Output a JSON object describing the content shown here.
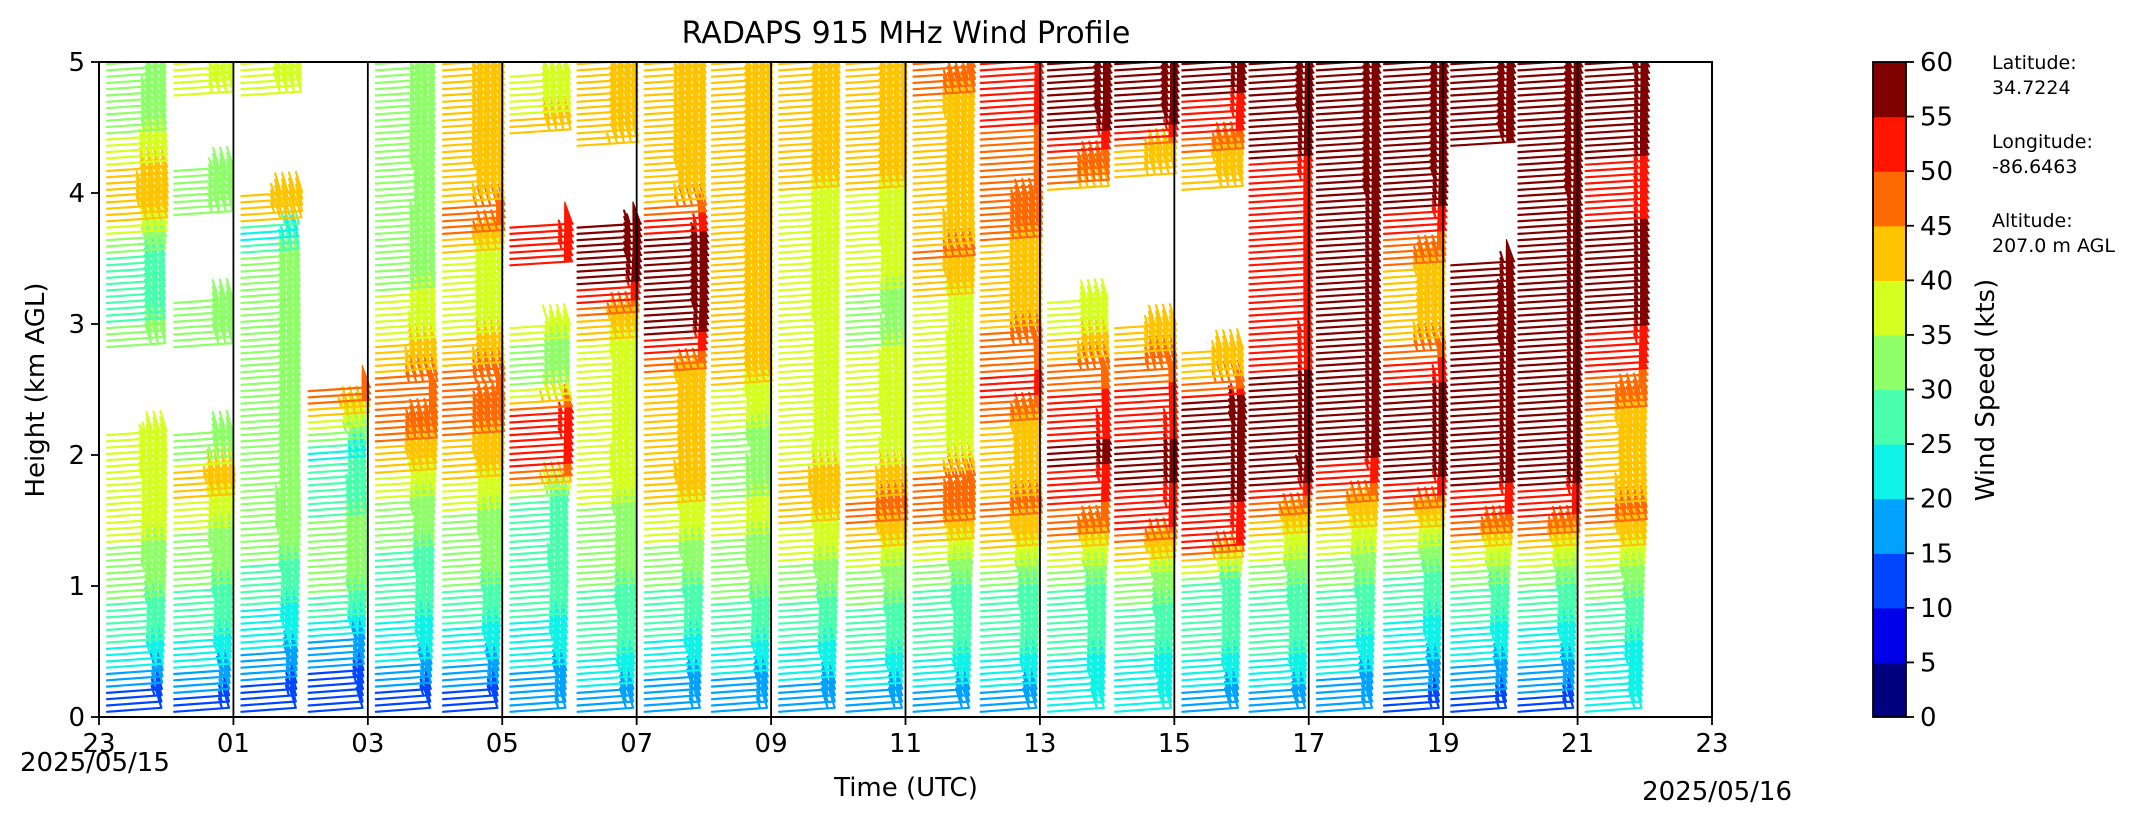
{
  "chart_data": {
    "type": "wind-barb-profile",
    "title": "RADAPS 915 MHz Wind Profile",
    "xlabel": "Time (UTC)",
    "ylabel": "Height (km AGL)",
    "x_tick_labels": [
      "23",
      "01",
      "03",
      "05",
      "07",
      "09",
      "11",
      "13",
      "15",
      "17",
      "19",
      "21",
      "23"
    ],
    "x_start_date": "2025/05/15",
    "x_end_date": "2025/05/16",
    "xlim_hours_utc": [
      23,
      47
    ],
    "ylim_km": [
      0,
      5
    ],
    "y_ticks": [
      "0",
      "1",
      "2",
      "3",
      "4",
      "5"
    ],
    "vertical_gridline_hours_utc": [
      25,
      27,
      29,
      31,
      33,
      35,
      37,
      39,
      41,
      43,
      45
    ],
    "colorbar": {
      "label": "Wind Speed (kts)",
      "colormap": "jet",
      "ticks": [
        "0",
        "5",
        "10",
        "15",
        "20",
        "25",
        "30",
        "35",
        "40",
        "45",
        "50",
        "55",
        "60"
      ],
      "bin_colors": [
        "#00007f",
        "#0000e9",
        "#0046ff",
        "#00a2ff",
        "#0ff2e7",
        "#49ffad",
        "#8eff69",
        "#d5ff21",
        "#ffc400",
        "#ff6a00",
        "#ff1500",
        "#800000"
      ]
    },
    "site_info": {
      "latitude_label": "Latitude:",
      "latitude_value": "34.7224",
      "longitude_label": "Longitude:",
      "longitude_value": "-86.6463",
      "altitude_label": "Altitude:",
      "altitude_value": "207.0 m AGL"
    },
    "profiles": [
      {
        "time_utc": 23.0,
        "levels": [
          [
            0.1,
            12
          ],
          [
            0.5,
            24
          ],
          [
            1.0,
            32
          ],
          [
            1.5,
            37
          ],
          [
            1.9,
            38
          ],
          [
            2.0,
            38
          ],
          [
            3.0,
            30
          ],
          [
            3.5,
            28
          ],
          [
            3.8,
            42
          ],
          [
            4.0,
            44
          ],
          [
            4.5,
            34
          ],
          [
            4.9,
            32
          ]
        ]
      },
      {
        "time_utc": 24.0,
        "levels": [
          [
            0.1,
            14
          ],
          [
            0.5,
            24
          ],
          [
            1.0,
            30
          ],
          [
            1.5,
            36
          ],
          [
            1.8,
            44
          ],
          [
            2.0,
            32
          ],
          [
            3.0,
            32
          ],
          [
            4.0,
            34
          ],
          [
            4.9,
            36
          ]
        ]
      },
      {
        "time_utc": 25.0,
        "levels": [
          [
            0.1,
            12
          ],
          [
            0.5,
            20
          ],
          [
            1.0,
            28
          ],
          [
            1.5,
            34
          ],
          [
            2.0,
            30
          ],
          [
            2.3,
            32
          ],
          [
            3.0,
            32
          ],
          [
            3.5,
            30
          ],
          [
            3.7,
            20
          ],
          [
            3.8,
            44
          ],
          [
            4.9,
            38
          ]
        ]
      },
      {
        "time_utc": 26.0,
        "levels": [
          [
            0.1,
            10
          ],
          [
            0.5,
            18
          ],
          [
            1.0,
            32
          ],
          [
            1.5,
            30
          ],
          [
            2.0,
            24
          ],
          [
            2.4,
            48
          ]
        ]
      },
      {
        "time_utc": 27.0,
        "levels": [
          [
            0.1,
            12
          ],
          [
            0.5,
            22
          ],
          [
            1.0,
            28
          ],
          [
            1.5,
            32
          ],
          [
            2.0,
            44
          ],
          [
            2.3,
            48
          ],
          [
            2.5,
            48
          ],
          [
            3.0,
            36
          ],
          [
            3.5,
            34
          ],
          [
            4.0,
            32
          ],
          [
            4.5,
            34
          ],
          [
            4.9,
            34
          ]
        ]
      },
      {
        "time_utc": 28.0,
        "levels": [
          [
            0.1,
            12
          ],
          [
            0.5,
            22
          ],
          [
            1.0,
            30
          ],
          [
            1.5,
            34
          ],
          [
            2.0,
            44
          ],
          [
            2.5,
            48
          ],
          [
            3.0,
            38
          ],
          [
            3.5,
            40
          ],
          [
            3.8,
            50
          ],
          [
            4.0,
            42
          ],
          [
            4.5,
            44
          ],
          [
            4.9,
            44
          ]
        ]
      },
      {
        "time_utc": 29.0,
        "levels": [
          [
            0.1,
            16
          ],
          [
            0.5,
            22
          ],
          [
            1.0,
            28
          ],
          [
            1.6,
            26
          ],
          [
            1.8,
            48
          ],
          [
            2.0,
            52
          ],
          [
            2.3,
            54
          ],
          [
            2.5,
            34
          ],
          [
            2.8,
            34
          ],
          [
            3.6,
            54
          ],
          [
            4.6,
            40
          ],
          [
            4.8,
            38
          ]
        ]
      },
      {
        "time_utc": 30.0,
        "levels": [
          [
            0.1,
            18
          ],
          [
            0.5,
            26
          ],
          [
            1.0,
            30
          ],
          [
            1.5,
            32
          ],
          [
            1.8,
            40
          ],
          [
            2.0,
            36
          ],
          [
            2.5,
            36
          ],
          [
            3.0,
            42
          ],
          [
            3.2,
            52
          ],
          [
            3.4,
            58
          ],
          [
            3.6,
            60
          ],
          [
            4.5,
            40
          ],
          [
            4.9,
            40
          ]
        ]
      },
      {
        "time_utc": 31.0,
        "levels": [
          [
            0.1,
            16
          ],
          [
            0.5,
            24
          ],
          [
            1.0,
            30
          ],
          [
            1.5,
            38
          ],
          [
            1.8,
            44
          ],
          [
            2.0,
            40
          ],
          [
            2.5,
            42
          ],
          [
            3.0,
            58
          ],
          [
            3.3,
            58
          ],
          [
            3.6,
            58
          ],
          [
            4.0,
            42
          ],
          [
            4.5,
            44
          ],
          [
            4.9,
            44
          ]
        ]
      },
      {
        "time_utc": 32.0,
        "levels": [
          [
            0.1,
            16
          ],
          [
            0.5,
            24
          ],
          [
            1.0,
            32
          ],
          [
            1.5,
            36
          ],
          [
            2.0,
            32
          ],
          [
            2.5,
            40
          ],
          [
            3.0,
            40
          ],
          [
            3.5,
            40
          ],
          [
            4.0,
            42
          ],
          [
            4.5,
            42
          ],
          [
            4.9,
            42
          ]
        ]
      },
      {
        "time_utc": 33.0,
        "levels": [
          [
            0.1,
            18
          ],
          [
            0.5,
            24
          ],
          [
            1.0,
            32
          ],
          [
            1.6,
            42
          ],
          [
            1.8,
            44
          ],
          [
            2.0,
            36
          ],
          [
            2.5,
            36
          ],
          [
            3.0,
            38
          ],
          [
            3.5,
            38
          ],
          [
            4.0,
            40
          ],
          [
            4.5,
            42
          ],
          [
            4.9,
            42
          ]
        ]
      },
      {
        "time_utc": 34.0,
        "levels": [
          [
            0.1,
            18
          ],
          [
            0.5,
            26
          ],
          [
            1.0,
            32
          ],
          [
            1.5,
            46
          ],
          [
            1.8,
            44
          ],
          [
            2.0,
            36
          ],
          [
            2.5,
            40
          ],
          [
            3.0,
            32
          ],
          [
            3.5,
            38
          ],
          [
            4.0,
            40
          ],
          [
            4.5,
            42
          ],
          [
            4.9,
            42
          ]
        ]
      },
      {
        "time_utc": 35.0,
        "levels": [
          [
            0.1,
            18
          ],
          [
            0.5,
            26
          ],
          [
            1.0,
            30
          ],
          [
            1.5,
            46
          ],
          [
            1.8,
            48
          ],
          [
            2.0,
            38
          ],
          [
            2.5,
            40
          ],
          [
            3.0,
            36
          ],
          [
            3.5,
            46
          ],
          [
            4.0,
            40
          ],
          [
            4.5,
            42
          ],
          [
            4.9,
            48
          ]
        ]
      },
      {
        "time_utc": 36.0,
        "levels": [
          [
            0.1,
            18
          ],
          [
            0.5,
            26
          ],
          [
            1.0,
            30
          ],
          [
            1.4,
            44
          ],
          [
            1.6,
            46
          ],
          [
            2.0,
            40
          ],
          [
            2.5,
            52
          ],
          [
            3.0,
            44
          ],
          [
            3.5,
            44
          ],
          [
            4.0,
            48
          ],
          [
            4.5,
            50
          ],
          [
            4.9,
            52
          ]
        ]
      },
      {
        "time_utc": 37.0,
        "levels": [
          [
            0.1,
            20
          ],
          [
            0.5,
            26
          ],
          [
            1.0,
            30
          ],
          [
            1.4,
            46
          ],
          [
            1.8,
            54
          ],
          [
            2.0,
            56
          ],
          [
            2.6,
            48
          ],
          [
            3.0,
            38
          ],
          [
            4.2,
            46
          ],
          [
            4.5,
            58
          ],
          [
            4.9,
            58
          ]
        ]
      },
      {
        "time_utc": 38.0,
        "levels": [
          [
            0.1,
            20
          ],
          [
            0.5,
            26
          ],
          [
            1.0,
            32
          ],
          [
            1.4,
            50
          ],
          [
            1.8,
            56
          ],
          [
            2.0,
            56
          ],
          [
            2.5,
            50
          ],
          [
            2.8,
            44
          ],
          [
            4.3,
            44
          ],
          [
            4.5,
            58
          ],
          [
            4.9,
            58
          ]
        ]
      },
      {
        "time_utc": 39.0,
        "levels": [
          [
            0.1,
            18
          ],
          [
            0.5,
            26
          ],
          [
            1.0,
            28
          ],
          [
            1.3,
            52
          ],
          [
            1.7,
            56
          ],
          [
            2.0,
            56
          ],
          [
            2.3,
            60
          ],
          [
            2.6,
            44
          ],
          [
            4.2,
            42
          ],
          [
            4.5,
            52
          ],
          [
            4.9,
            58
          ]
        ]
      },
      {
        "time_utc": 40.0,
        "levels": [
          [
            0.1,
            18
          ],
          [
            0.5,
            26
          ],
          [
            1.0,
            30
          ],
          [
            1.5,
            44
          ],
          [
            1.8,
            58
          ],
          [
            2.0,
            56
          ],
          [
            2.5,
            56
          ],
          [
            3.0,
            52
          ],
          [
            3.5,
            52
          ],
          [
            4.0,
            52
          ],
          [
            4.5,
            58
          ],
          [
            4.9,
            60
          ]
        ]
      },
      {
        "time_utc": 41.0,
        "levels": [
          [
            0.1,
            16
          ],
          [
            0.5,
            24
          ],
          [
            1.0,
            30
          ],
          [
            1.5,
            42
          ],
          [
            1.8,
            52
          ],
          [
            2.0,
            56
          ],
          [
            2.5,
            56
          ],
          [
            3.0,
            56
          ],
          [
            3.5,
            56
          ],
          [
            4.0,
            58
          ],
          [
            4.5,
            58
          ],
          [
            4.9,
            58
          ]
        ]
      },
      {
        "time_utc": 42.0,
        "levels": [
          [
            0.1,
            14
          ],
          [
            0.5,
            22
          ],
          [
            1.0,
            28
          ],
          [
            1.5,
            42
          ],
          [
            1.8,
            56
          ],
          [
            2.0,
            56
          ],
          [
            2.5,
            56
          ],
          [
            3.0,
            40
          ],
          [
            3.3,
            42
          ],
          [
            4.0,
            58
          ],
          [
            4.5,
            58
          ],
          [
            4.9,
            60
          ]
        ]
      },
      {
        "time_utc": 43.0,
        "levels": [
          [
            0.1,
            14
          ],
          [
            0.5,
            22
          ],
          [
            1.0,
            30
          ],
          [
            1.5,
            50
          ],
          [
            1.8,
            56
          ],
          [
            2.0,
            56
          ],
          [
            2.5,
            56
          ],
          [
            3.0,
            60
          ],
          [
            3.3,
            56
          ],
          [
            4.5,
            58
          ],
          [
            4.9,
            60
          ]
        ]
      },
      {
        "time_utc": 44.0,
        "levels": [
          [
            0.1,
            14
          ],
          [
            0.5,
            22
          ],
          [
            1.0,
            30
          ],
          [
            1.5,
            50
          ],
          [
            1.8,
            56
          ],
          [
            2.0,
            56
          ],
          [
            2.5,
            56
          ],
          [
            3.0,
            56
          ],
          [
            3.5,
            56
          ],
          [
            4.0,
            58
          ],
          [
            4.5,
            58
          ],
          [
            4.9,
            60
          ]
        ]
      },
      {
        "time_utc": 45.0,
        "levels": [
          [
            0.1,
            20
          ],
          [
            0.5,
            24
          ],
          [
            1.0,
            32
          ],
          [
            1.5,
            46
          ],
          [
            1.7,
            44
          ],
          [
            2.0,
            40
          ],
          [
            2.5,
            48
          ],
          [
            3.0,
            56
          ],
          [
            3.5,
            56
          ],
          [
            4.0,
            54
          ],
          [
            4.5,
            56
          ],
          [
            4.9,
            58
          ]
        ]
      }
    ]
  }
}
